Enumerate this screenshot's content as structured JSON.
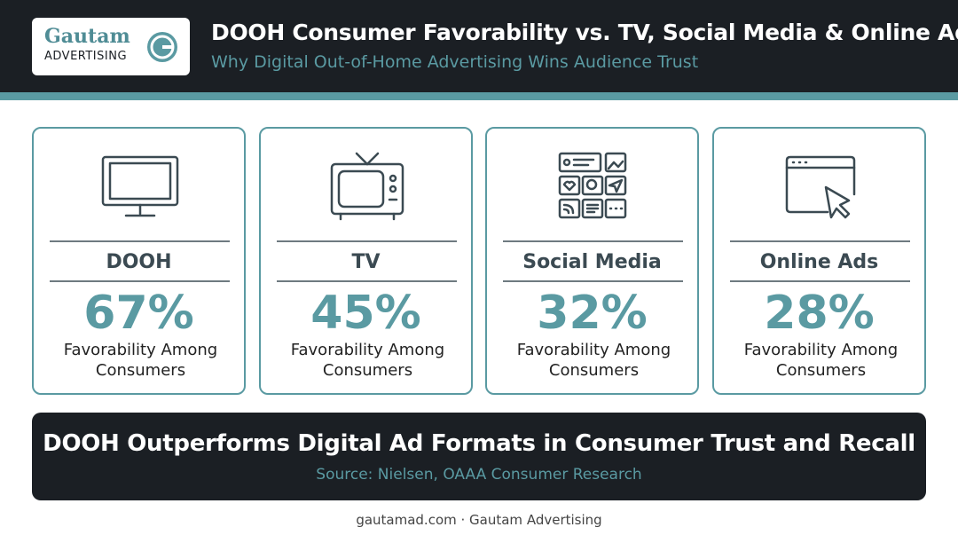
{
  "header": {
    "logo": {
      "name": "Gautam",
      "tagline": "ADVERTISING"
    },
    "title": "DOOH Consumer Favorability vs. TV, Social Media & Online Ads",
    "subtitle": "Why Digital Out-of-Home Advertising Wins Audience Trust"
  },
  "cards": [
    {
      "label": "DOOH",
      "value": "67%",
      "caption": "Favorability Among Consumers"
    },
    {
      "label": "TV",
      "value": "45%",
      "caption": "Favorability Among Consumers"
    },
    {
      "label": "Social Media",
      "value": "32%",
      "caption": "Favorability Among Consumers"
    },
    {
      "label": "Online Ads",
      "value": "28%",
      "caption": "Favorability Among Consumers"
    }
  ],
  "banner": {
    "title": "DOOH Outperforms Digital Ad Formats in Consumer Trust and Recall",
    "source": "Source: Nielsen, OAAA Consumer Research"
  },
  "footer": "gautamad.com · Gautam Advertising"
}
